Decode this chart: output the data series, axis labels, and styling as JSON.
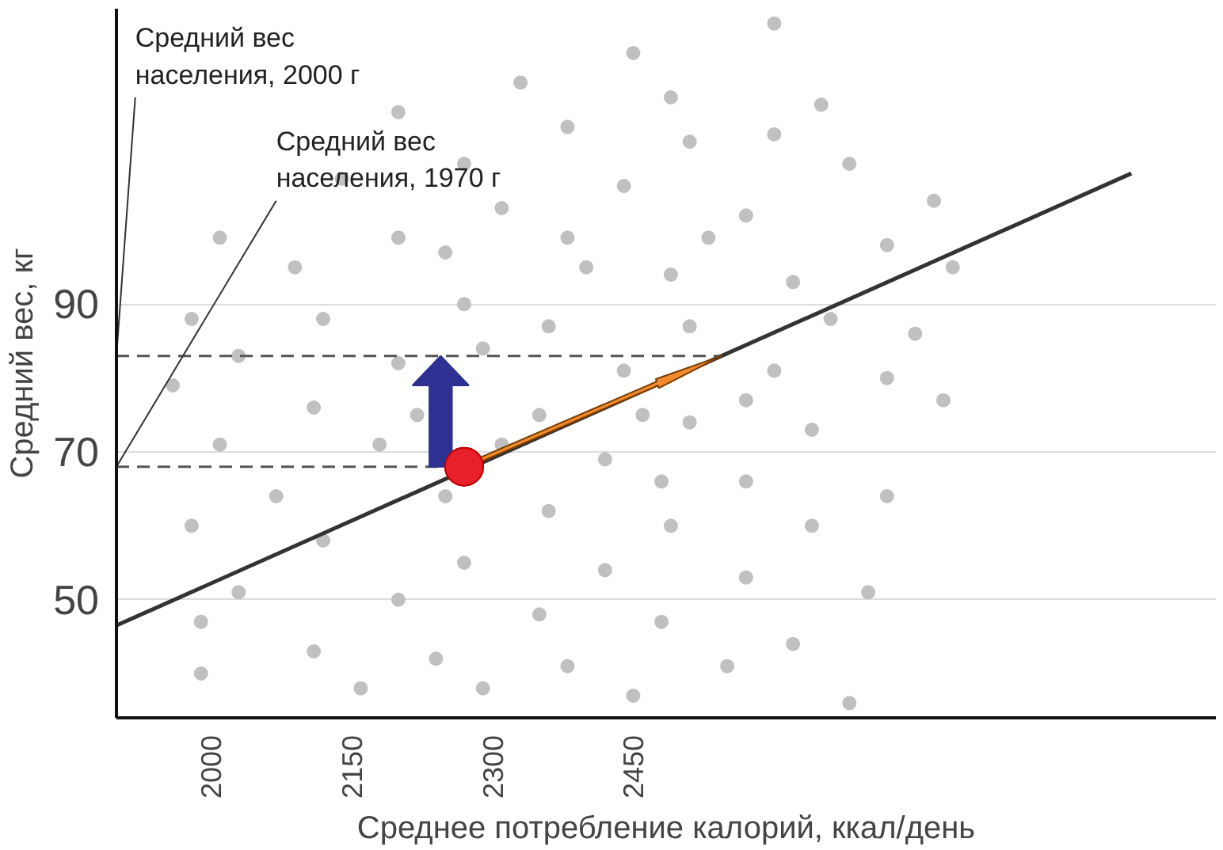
{
  "chart_data": {
    "type": "scatter",
    "xlabel": "Среднее потребление калорий, ккал/день",
    "ylabel": "Средний вес, кг",
    "xlim": [
      1900,
      3070
    ],
    "ylim": [
      34,
      130
    ],
    "xticks": [
      2000,
      2150,
      2300,
      2450
    ],
    "yticks": [
      50,
      70,
      90
    ],
    "grid": "y",
    "marker": "circle",
    "series": [
      {
        "color": "#c0c0c0",
        "x": [
          2600,
          2450,
          2330,
          2490,
          2200,
          2650,
          2380,
          2510,
          2270,
          2680,
          2140,
          2440,
          2770,
          2310,
          2570,
          2010,
          2200,
          2720,
          2090,
          2400,
          2490,
          2620,
          2790,
          1980,
          2120,
          2270,
          2360,
          2510,
          2660,
          2750,
          2030,
          2200,
          2440,
          2600,
          2720,
          2780,
          1960,
          2110,
          2350,
          2510,
          2640,
          2010,
          2180,
          2420,
          2570,
          2720,
          2070,
          2250,
          2360,
          2490,
          2640,
          1980,
          2120,
          2270,
          2420,
          2570,
          2700,
          2030,
          2200,
          2350,
          2480,
          2620,
          1990,
          2110,
          2240,
          2380,
          2550,
          2680,
          1990,
          2160,
          2290,
          2450,
          2250,
          2530,
          2600,
          2380,
          2310,
          2220,
          2480,
          2570,
          2290,
          2460
        ],
        "values": [
          128,
          124,
          120,
          118,
          116,
          117,
          114,
          112,
          109,
          109,
          107,
          106,
          104,
          103,
          102,
          99,
          99,
          98,
          95,
          95,
          94,
          93,
          95,
          88,
          88,
          90,
          87,
          87,
          88,
          86,
          83,
          82,
          81,
          81,
          80,
          77,
          79,
          76,
          75,
          74,
          73,
          71,
          71,
          69,
          66,
          64,
          64,
          64,
          62,
          60,
          60,
          60,
          58,
          55,
          54,
          53,
          51,
          51,
          50,
          48,
          47,
          44,
          47,
          43,
          42,
          41,
          41,
          36,
          40,
          38,
          38,
          37,
          97,
          99,
          113,
          99,
          71,
          75,
          66,
          77,
          84,
          75
        ]
      },
      {
        "type": "line",
        "marker": "none",
        "color": "#333333",
        "x": [
          1900,
          2980
        ],
        "values": [
          46.5,
          107.7
        ]
      },
      {
        "type": "scatter",
        "color": "#e8202a",
        "x": [
          2270
        ],
        "values": [
          68
        ]
      }
    ],
    "ref_lines": [
      {
        "axis": "y",
        "value": 83,
        "label": "Средний вес населения, 2000 г",
        "line_style": "dashed",
        "color": "#555555"
      },
      {
        "axis": "y",
        "value": 68,
        "label": "Средний вес населения, 1970 г",
        "line_style": "dashed",
        "color": "#555555"
      }
    ]
  }
}
